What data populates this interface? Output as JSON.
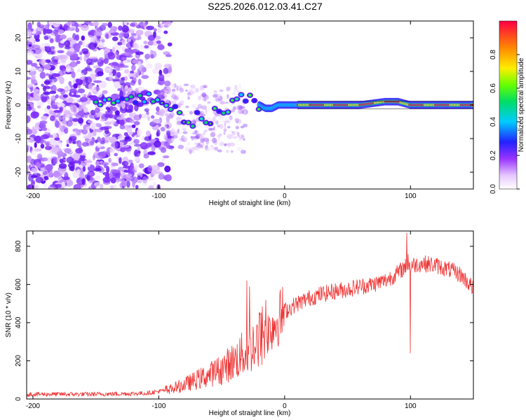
{
  "title": "S225.2026.012.03.41.C27",
  "chart_data": [
    {
      "type": "heatmap",
      "name": "spectrogram",
      "xlabel": "Height of straight line (km)",
      "ylabel": "Frequency (Hz)",
      "xlim": [
        -205,
        150
      ],
      "ylim": [
        -25,
        25
      ],
      "xticks": [
        -200,
        -100,
        0,
        100
      ],
      "yticks": [
        -20,
        -10,
        0,
        10,
        20
      ],
      "colorbar": {
        "label": "Normalized spectral amplitude",
        "range": [
          0,
          1
        ],
        "ticks": [
          0.0,
          0.2,
          0.4,
          0.6,
          0.8
        ]
      },
      "trace": {
        "x": [
          -150,
          -140,
          -130,
          -120,
          -110,
          -100,
          -95,
          -90,
          -85,
          -80,
          -75,
          -70,
          -65,
          -60,
          -55,
          -50,
          -45,
          -40,
          -35,
          -30,
          -25,
          -20,
          -15,
          -10,
          -5,
          0,
          10,
          20,
          40,
          60,
          80,
          90,
          100,
          120,
          150
        ],
        "freq": [
          0,
          1,
          2,
          1,
          2,
          2,
          1,
          0,
          -2,
          -4,
          -6,
          -3,
          -5,
          -6,
          -2,
          -4,
          -1,
          1,
          3,
          2,
          1,
          0,
          -1,
          -1,
          0,
          0,
          0,
          0,
          0,
          0,
          1,
          1,
          0,
          0,
          0
        ]
      }
    },
    {
      "type": "line",
      "name": "snr",
      "xlabel": "Height of straight line (km)",
      "ylabel": "SNR (10 * v/v)",
      "xlim": [
        -205,
        150
      ],
      "ylim": [
        0,
        880
      ],
      "xticks": [
        -200,
        -100,
        0,
        100
      ],
      "yticks": [
        0,
        200,
        400,
        600,
        800
      ],
      "color": "#ee3333",
      "envelope": {
        "x": [
          -205,
          -150,
          -110,
          -90,
          -80,
          -70,
          -60,
          -50,
          -40,
          -30,
          -20,
          -10,
          0,
          10,
          20,
          30,
          40,
          50,
          60,
          70,
          80,
          90,
          95,
          100,
          110,
          120,
          130,
          140,
          150
        ],
        "y": [
          25,
          25,
          30,
          50,
          70,
          95,
          120,
          150,
          190,
          240,
          300,
          380,
          460,
          500,
          530,
          550,
          565,
          575,
          590,
          600,
          620,
          660,
          690,
          700,
          710,
          700,
          680,
          650,
          580
        ]
      },
      "spikes": {
        "x": [
          -30,
          -28,
          -21,
          -20,
          -15,
          97,
          98,
          100
        ],
        "y": [
          620,
          590,
          170,
          440,
          520,
          870,
          760,
          240
        ]
      }
    }
  ]
}
